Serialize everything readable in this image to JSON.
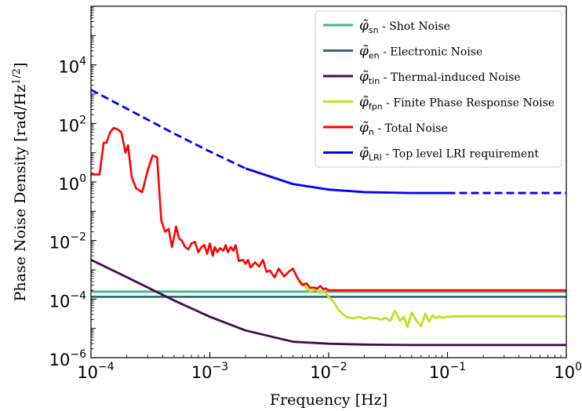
{
  "chart_data": {
    "type": "line",
    "xscale": "log",
    "yscale": "log",
    "xlim": [
      0.0001,
      1
    ],
    "ylim": [
      1e-06,
      1000000
    ],
    "xlabel": "Frequency [Hz]",
    "ylabel": "Phase Noise Density [rad/Hz^{1/2}]",
    "ylabel_base": "Phase Noise Density [rad/Hz",
    "ylabel_exp": "1/2",
    "ylabel_close": "]",
    "legend_position": "top-right",
    "xticks": [
      {
        "v": 0.0001,
        "base": "10",
        "exp": "−4"
      },
      {
        "v": 0.001,
        "base": "10",
        "exp": "−3"
      },
      {
        "v": 0.01,
        "base": "10",
        "exp": "−2"
      },
      {
        "v": 0.1,
        "base": "10",
        "exp": "−1"
      },
      {
        "v": 1,
        "base": "10",
        "exp": "0"
      }
    ],
    "yticks": [
      {
        "v": 1e-06,
        "base": "10",
        "exp": "−6"
      },
      {
        "v": 0.0001,
        "base": "10",
        "exp": "−4"
      },
      {
        "v": 0.01,
        "base": "10",
        "exp": "−2"
      },
      {
        "v": 1,
        "base": "10",
        "exp": "0"
      },
      {
        "v": 100,
        "base": "10",
        "exp": "2"
      },
      {
        "v": 10000,
        "base": "10",
        "exp": "4"
      }
    ],
    "series": [
      {
        "name": "φ̃sn - Shot Noise",
        "sym": "φ̃",
        "sub": "sn",
        "desc": " - Shot Noise",
        "color": "#3dba7f",
        "dash": "solid",
        "x": [
          0.0001,
          1
        ],
        "y": [
          0.00018,
          0.00018
        ]
      },
      {
        "name": "φ̃en - Electronic Noise",
        "sym": "φ̃",
        "sub": "en",
        "desc": " - Electronic Noise",
        "color": "#2e6b7e",
        "dash": "solid",
        "x": [
          0.0001,
          1
        ],
        "y": [
          0.00012,
          0.00012
        ]
      },
      {
        "name": "φ̃tin - Thermal-induced Noise",
        "sym": "φ̃",
        "sub": "tin",
        "desc": " - Thermal-induced Noise",
        "color": "#46094f",
        "dash": "solid",
        "x": [
          0.0001,
          0.0002,
          0.0005,
          0.001,
          0.002,
          0.005,
          0.01,
          0.02,
          0.05,
          0.1,
          0.2,
          1
        ],
        "y": [
          0.0022,
          0.00056,
          9e-05,
          2.5e-05,
          8.5e-06,
          3.5e-06,
          3e-06,
          2.8e-06,
          2.7e-06,
          2.7e-06,
          2.7e-06,
          2.7e-06
        ]
      },
      {
        "name": "φ̃fpn - Finite Phase Response Noise",
        "sym": "φ̃",
        "sub": "fpn",
        "desc": " - Finite Phase Response Noise",
        "color": "#c2df23",
        "dash": "solid",
        "x": [
          0.0055,
          0.0062,
          0.007,
          0.0078,
          0.0085,
          0.009,
          0.01,
          0.011,
          0.012,
          0.013,
          0.014,
          0.016,
          0.018,
          0.02,
          0.022,
          0.025,
          0.028,
          0.03,
          0.033,
          0.036,
          0.04,
          0.043,
          0.046,
          0.05,
          0.055,
          0.06,
          0.065,
          0.07,
          0.075,
          0.08,
          0.085,
          0.09,
          0.1,
          0.12,
          0.15,
          1
        ],
        "y": [
          0.0005,
          0.0003,
          0.00018,
          0.00022,
          0.00016,
          0.0002,
          0.00012,
          8e-05,
          4.5e-05,
          3.2e-05,
          2.5e-05,
          2.2e-05,
          2.5e-05,
          2.1e-05,
          2.4e-05,
          2.2e-05,
          2e-05,
          2.3e-05,
          1.8e-05,
          4e-05,
          1.8e-05,
          2.5e-05,
          1.1e-05,
          3.5e-05,
          1.8e-05,
          1.2e-05,
          3.2e-05,
          1.7e-05,
          2.8e-05,
          2.2e-05,
          2.6e-05,
          2.3e-05,
          2.5e-05,
          2.6e-05,
          2.6e-05,
          2.6e-05
        ]
      },
      {
        "name": "φ̃n - Total Noise",
        "sym": "φ̃",
        "sub": "n",
        "desc": " - Total Noise",
        "color": "#ff0000",
        "dash": "solid",
        "x": [
          0.0001,
          0.000118,
          0.000128,
          0.000135,
          0.000145,
          0.000155,
          0.000165,
          0.00018,
          0.000195,
          0.000205,
          0.00022,
          0.00024,
          0.00027,
          0.0003,
          0.00033,
          0.00036,
          0.00039,
          0.00042,
          0.00045,
          0.00048,
          0.00052,
          0.00055,
          0.00058,
          0.00062,
          0.00066,
          0.0007,
          0.00075,
          0.0008,
          0.00085,
          0.0009,
          0.00095,
          0.001,
          0.00106,
          0.0011,
          0.00116,
          0.00122,
          0.0013,
          0.00136,
          0.00142,
          0.0015,
          0.00158,
          0.00165,
          0.00175,
          0.0019,
          0.002,
          0.0021,
          0.0022,
          0.0024,
          0.0026,
          0.0028,
          0.003,
          0.0032,
          0.0035,
          0.0038,
          0.0042,
          0.0046,
          0.005,
          0.0055,
          0.006,
          0.0065,
          0.007,
          0.0075,
          0.008,
          0.0085,
          0.009,
          0.0095,
          0.01,
          0.011,
          0.012,
          0.015,
          0.02,
          0.05,
          0.1,
          1
        ],
        "y": [
          1.8,
          1.8,
          22,
          22,
          50,
          70,
          65,
          50,
          10,
          18,
          1.5,
          0.6,
          0.45,
          2.5,
          8,
          7,
          0.05,
          0.02,
          0.025,
          0.006,
          0.03,
          0.012,
          0.01,
          0.006,
          0.005,
          0.008,
          0.009,
          0.004,
          0.006,
          0.007,
          0.0035,
          0.008,
          0.003,
          0.006,
          0.004,
          0.0055,
          0.0045,
          0.007,
          0.004,
          0.006,
          0.0045,
          0.007,
          0.002,
          0.0022,
          0.0016,
          0.0022,
          0.0012,
          0.0018,
          0.0013,
          0.0022,
          0.00085,
          0.00095,
          0.00055,
          0.0011,
          0.0006,
          0.00085,
          0.0011,
          0.0005,
          0.0003,
          0.00035,
          0.00024,
          0.00025,
          0.00023,
          0.00028,
          0.00022,
          0.00023,
          0.0002,
          0.0002,
          0.0002,
          0.0002,
          0.0002,
          0.0002,
          0.0002,
          0.0002
        ]
      },
      {
        "name": "φ̃LRI - Top level LRI requirement",
        "sym": "φ̃",
        "sub": "LRI",
        "desc": " - Top level LRI requirement",
        "color": "#0000ff",
        "dash": "dashed",
        "segments": [
          {
            "style": "dashed",
            "x": [
              0.0001,
              0.0002,
              0.0005,
              0.001,
              0.002
            ],
            "y": [
              1400,
              320,
              45,
              11,
              2.9
            ]
          },
          {
            "style": "solid",
            "x": [
              0.002,
              0.005,
              0.01,
              0.02,
              0.05,
              0.1
            ],
            "y": [
              2.9,
              0.85,
              0.55,
              0.45,
              0.42,
              0.42
            ]
          },
          {
            "style": "dashed",
            "x": [
              0.1,
              0.2,
              0.5,
              1
            ],
            "y": [
              0.42,
              0.42,
              0.42,
              0.42
            ]
          }
        ]
      }
    ]
  }
}
